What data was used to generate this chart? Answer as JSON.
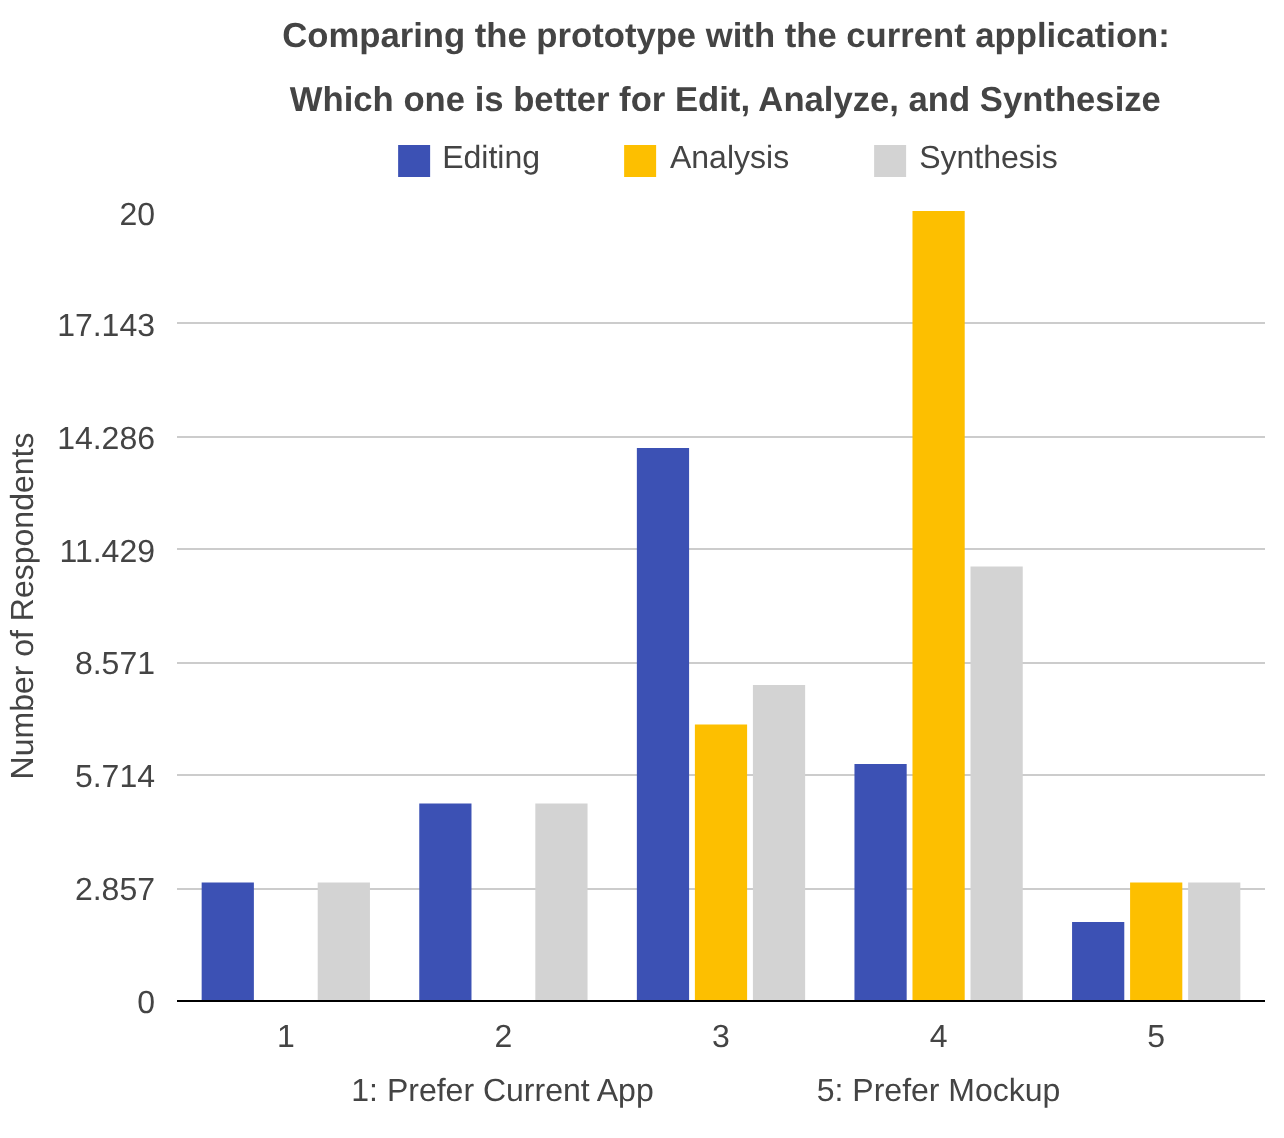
{
  "chart_data": {
    "type": "bar",
    "title": "Comparing the prototype with the current application:",
    "subtitle": "Which one is better for Edit, Analyze, and Synthesize",
    "ylabel": "Number of Respondents",
    "categories": [
      "1",
      "2",
      "3",
      "4",
      "5"
    ],
    "series": [
      {
        "name": "Editing",
        "color": "#3c51b4",
        "values": [
          3,
          5,
          14,
          6,
          2
        ]
      },
      {
        "name": "Analysis",
        "color": "#fdbf00",
        "values": [
          0,
          0,
          7,
          20,
          3
        ]
      },
      {
        "name": "Synthesis",
        "color": "#d3d3d3",
        "values": [
          3,
          5,
          8,
          11,
          3
        ]
      }
    ],
    "ylim": [
      0,
      20
    ],
    "yticks": [
      0,
      2.857,
      5.714,
      8.571,
      11.429,
      14.286,
      17.143,
      20
    ],
    "grid": "y",
    "legend": "top",
    "annotations": [
      "1: Prefer Current App",
      "5: Prefer Mockup"
    ]
  }
}
